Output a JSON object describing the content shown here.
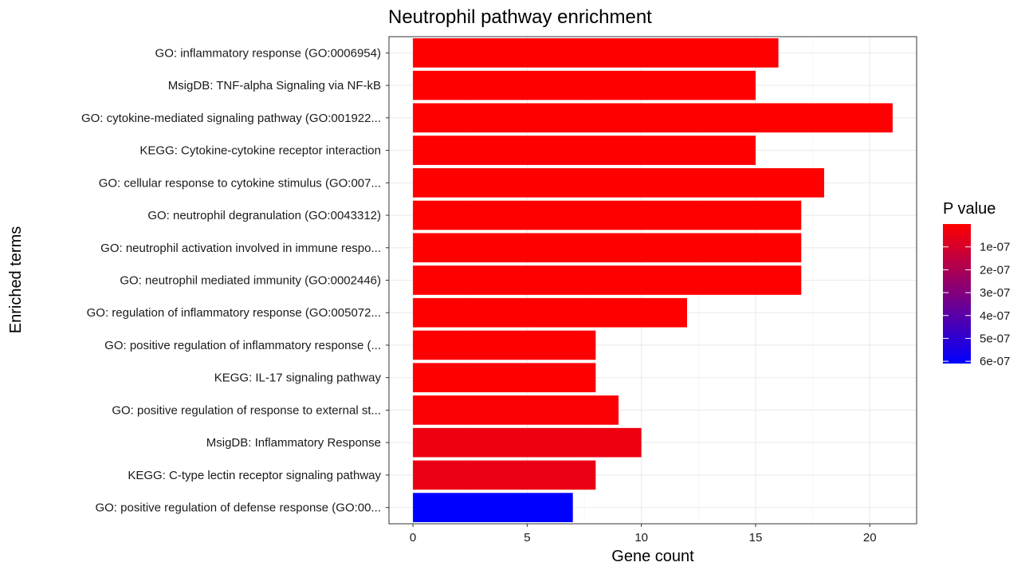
{
  "chart_data": {
    "type": "bar",
    "orientation": "horizontal",
    "title": "Neutrophil pathway enrichment",
    "xlabel": "Gene count",
    "ylabel": "Enriched terms",
    "xlim": [
      -1.05,
      22.05
    ],
    "xticks": [
      0,
      5,
      10,
      15,
      20
    ],
    "xtick_labels": [
      "0",
      "5",
      "10",
      "15",
      "20"
    ],
    "grid": true,
    "categories": [
      "GO: inflammatory response (GO:0006954)",
      "MsigDB: TNF-alpha Signaling via NF-kB",
      "GO: cytokine-mediated signaling pathway (GO:001922...",
      "KEGG: Cytokine-cytokine receptor interaction",
      "GO: cellular response to cytokine stimulus (GO:007...",
      "GO: neutrophil degranulation (GO:0043312)",
      "GO: neutrophil activation involved in immune respo...",
      "GO: neutrophil mediated immunity (GO:0002446)",
      "GO: regulation of inflammatory response (GO:005072...",
      "GO: positive regulation of inflammatory response (...",
      "KEGG: IL-17 signaling pathway",
      "GO: positive regulation of response to external st...",
      "MsigDB: Inflammatory Response",
      "KEGG: C-type lectin receptor signaling pathway",
      "GO: positive regulation of defense response (GO:00..."
    ],
    "values": [
      16,
      15,
      21,
      15,
      18,
      17,
      17,
      17,
      12,
      8,
      8,
      9,
      10,
      8,
      7
    ],
    "p_values": [
      1e-10,
      1e-10,
      1e-10,
      1e-10,
      1e-10,
      1e-10,
      1e-10,
      1e-10,
      1e-09,
      5e-09,
      5e-09,
      1e-08,
      4e-08,
      5e-08,
      6.1e-07
    ],
    "color_scale": {
      "title": "P value",
      "low_color": "#FF0000",
      "high_color": "#0000FF",
      "domain": [
        0,
        6.1e-07
      ],
      "breaks": [
        1e-07,
        2e-07,
        3e-07,
        4e-07,
        5e-07,
        6e-07
      ],
      "labels": [
        "1e-07",
        "2e-07",
        "3e-07",
        "4e-07",
        "5e-07",
        "6e-07"
      ],
      "position": "right"
    }
  }
}
